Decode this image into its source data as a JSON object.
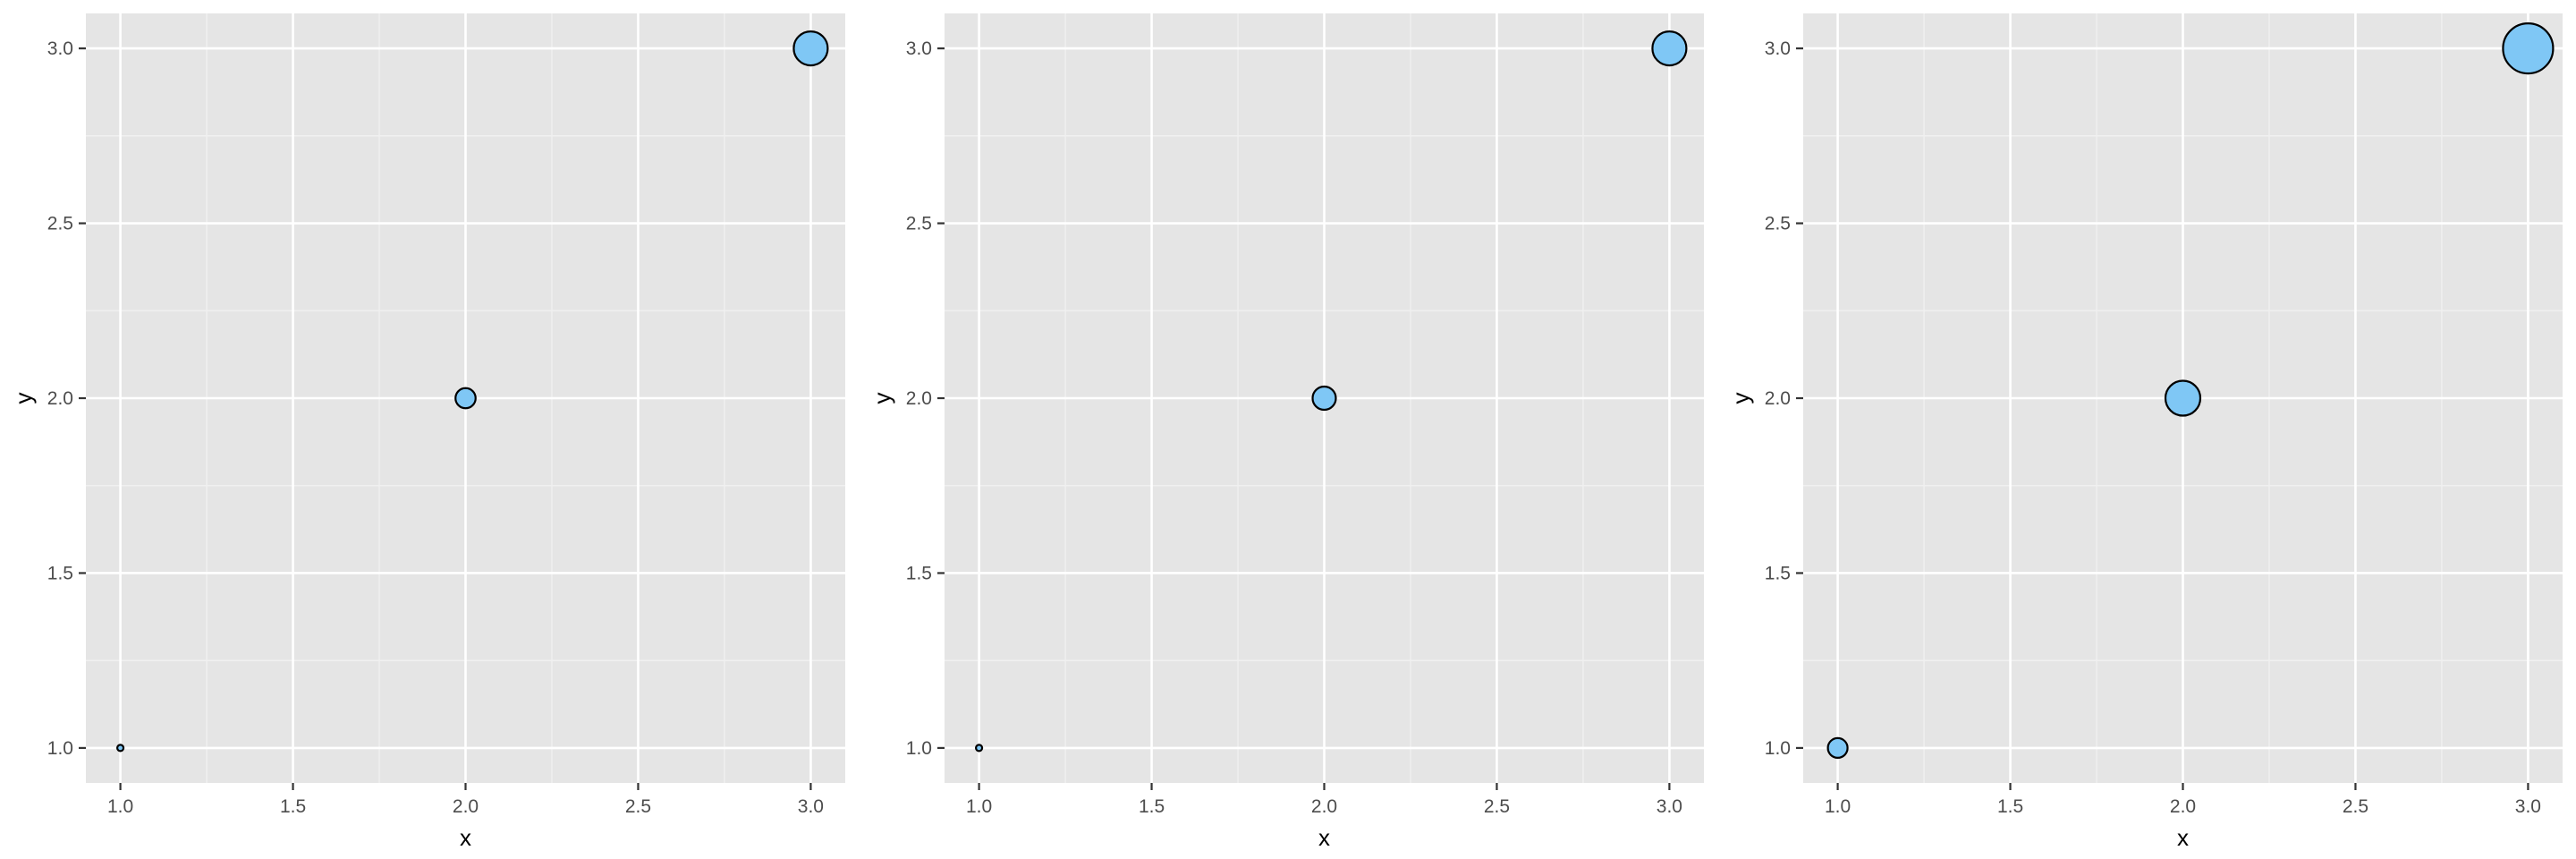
{
  "chart_data": [
    {
      "type": "scatter",
      "xlabel": "x",
      "ylabel": "y",
      "xlim": [
        0.9,
        3.1
      ],
      "ylim": [
        0.9,
        3.1
      ],
      "x_ticks": [
        "1.0",
        "1.5",
        "2.0",
        "2.5",
        "3.0"
      ],
      "y_ticks": [
        "1.0",
        "1.5",
        "2.0",
        "2.5",
        "3.0"
      ],
      "grid": true,
      "point_color": "#7fc7f5",
      "point_outline": "#000000",
      "points": [
        {
          "x": 1.0,
          "y": 1.0,
          "size": 1
        },
        {
          "x": 2.0,
          "y": 2.0,
          "size": 2
        },
        {
          "x": 3.0,
          "y": 3.0,
          "size": 3
        }
      ],
      "size_to_radius": {
        "size_range": [
          1,
          3
        ],
        "radius_range": [
          3.5,
          19
        ]
      }
    },
    {
      "type": "scatter",
      "xlabel": "x",
      "ylabel": "y",
      "xlim": [
        0.9,
        3.1
      ],
      "ylim": [
        0.9,
        3.1
      ],
      "x_ticks": [
        "1.0",
        "1.5",
        "2.0",
        "2.5",
        "3.0"
      ],
      "y_ticks": [
        "1.0",
        "1.5",
        "2.0",
        "2.5",
        "3.0"
      ],
      "grid": true,
      "point_color": "#7fc7f5",
      "point_outline": "#000000",
      "points": [
        {
          "x": 1.0,
          "y": 1.0,
          "size": 1
        },
        {
          "x": 2.0,
          "y": 2.0,
          "size": 2
        },
        {
          "x": 3.0,
          "y": 3.0,
          "size": 3
        }
      ],
      "size_to_radius": {
        "size_range": [
          1,
          3
        ],
        "radius_range": [
          3.5,
          19
        ]
      },
      "note_radius": "middle point smaller than panel 1"
    },
    {
      "type": "scatter",
      "xlabel": "x",
      "ylabel": "y",
      "xlim": [
        0.9,
        3.1
      ],
      "ylim": [
        0.9,
        3.1
      ],
      "x_ticks": [
        "1.0",
        "1.5",
        "2.0",
        "2.5",
        "3.0"
      ],
      "y_ticks": [
        "1.0",
        "1.5",
        "2.0",
        "2.5",
        "3.0"
      ],
      "grid": true,
      "point_color": "#7fc7f5",
      "point_outline": "#000000",
      "points": [
        {
          "x": 1.0,
          "y": 1.0,
          "size": 1
        },
        {
          "x": 2.0,
          "y": 2.0,
          "size": 2
        },
        {
          "x": 3.0,
          "y": 3.0,
          "size": 3
        }
      ],
      "size_to_radius": {
        "size_range": [
          1,
          3
        ],
        "radius_range": [
          11,
          28
        ]
      }
    }
  ]
}
